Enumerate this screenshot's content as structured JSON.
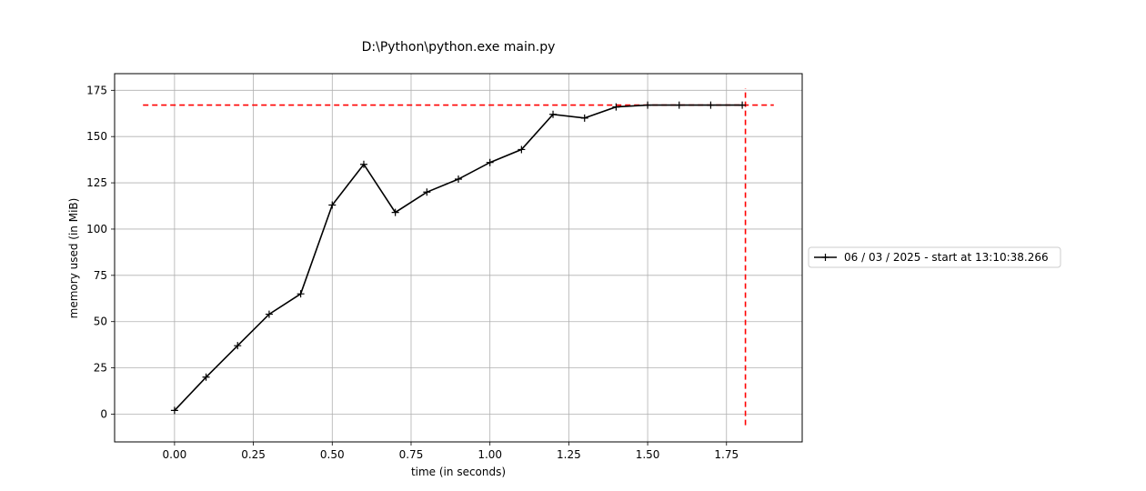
{
  "window_title": "D:\\Python\\python.exe main.py",
  "chart_data": {
    "type": "line",
    "title": "D:\\Python\\python.exe main.py",
    "xlabel": "time (in seconds)",
    "ylabel": "memory used (in MiB)",
    "xlim": [
      -0.19,
      1.99
    ],
    "ylim": [
      -15,
      184
    ],
    "xticks": [
      0.0,
      0.25,
      0.5,
      0.75,
      1.0,
      1.25,
      1.5,
      1.75
    ],
    "xtick_labels": [
      "0.00",
      "0.25",
      "0.50",
      "0.75",
      "1.00",
      "1.25",
      "1.50",
      "1.75"
    ],
    "yticks": [
      0,
      25,
      50,
      75,
      100,
      125,
      150,
      175
    ],
    "ytick_labels": [
      "0",
      "25",
      "50",
      "75",
      "100",
      "125",
      "150",
      "175"
    ],
    "grid": true,
    "legend": "center-right-outside",
    "series": [
      {
        "name": "06 / 03 / 2025 - start at 13:10:38.266",
        "color": "#000000",
        "marker": "plus",
        "x": [
          0.0,
          0.1,
          0.2,
          0.3,
          0.4,
          0.5,
          0.6,
          0.7,
          0.8,
          0.9,
          1.0,
          1.1,
          1.2,
          1.3,
          1.4,
          1.5,
          1.6,
          1.7,
          1.8
        ],
        "y": [
          2,
          20,
          37,
          54,
          65,
          113,
          135,
          109,
          120,
          127,
          136,
          143,
          162,
          160,
          166,
          167,
          167,
          167,
          167
        ]
      }
    ],
    "reference_lines": [
      {
        "orientation": "horizontal",
        "y": 167,
        "x_from": -0.1,
        "x_to": 1.9,
        "color": "#ff0000",
        "style": "dashed"
      },
      {
        "orientation": "vertical",
        "x": 1.81,
        "y_from": -6,
        "y_to": 176,
        "color": "#ff0000",
        "style": "dashed"
      }
    ]
  }
}
